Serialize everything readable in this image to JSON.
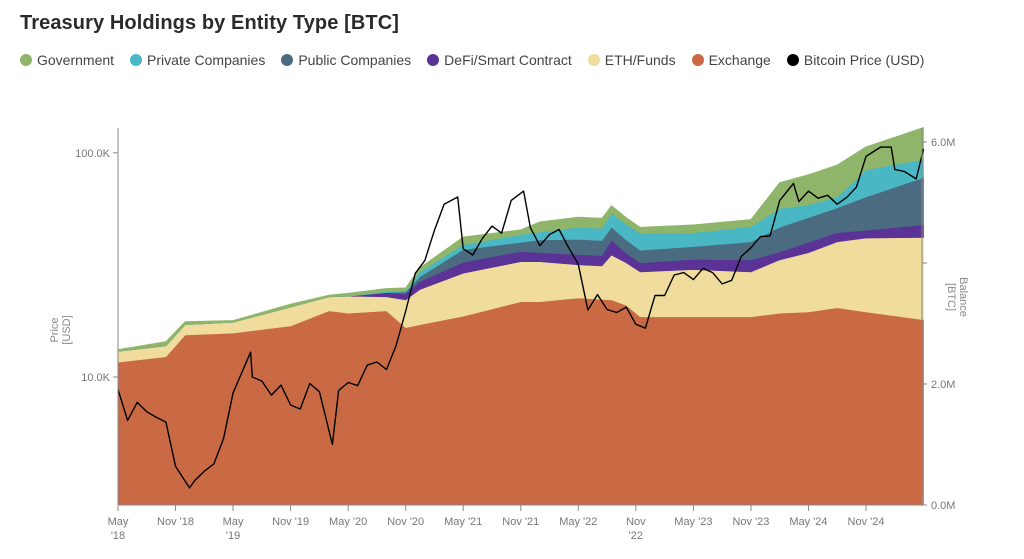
{
  "chart_data": {
    "type": "area",
    "title": "Treasury Holdings by Entity Type [BTC]",
    "legend_position": "top-left",
    "grid": false,
    "left_axis": {
      "label": [
        "Price",
        "[USD]"
      ],
      "scale": "log",
      "range": [
        2685,
        129000
      ],
      "ticks": [
        {
          "value": 10000,
          "label": "10.0K"
        },
        {
          "value": 100000,
          "label": "100.0K"
        }
      ]
    },
    "right_axis": {
      "label": [
        "Balance",
        "[BTC]"
      ],
      "scale": "linear",
      "range": [
        0,
        6.23
      ],
      "unit": "M BTC",
      "ticks": [
        {
          "value": 0,
          "label": "0.0M"
        },
        {
          "value": 2,
          "label": "2.0M"
        },
        {
          "value": 4,
          "label": ""
        },
        {
          "value": 6,
          "label": "6.0M"
        }
      ]
    },
    "x_ticks": [
      {
        "date": "2018-05",
        "label": [
          "May",
          "'18"
        ]
      },
      {
        "date": "2018-11",
        "label": [
          "Nov '18"
        ]
      },
      {
        "date": "2019-05",
        "label": [
          "May",
          "'19"
        ]
      },
      {
        "date": "2019-11",
        "label": [
          "Nov '19"
        ]
      },
      {
        "date": "2020-05",
        "label": [
          "May '20"
        ]
      },
      {
        "date": "2020-11",
        "label": [
          "Nov '20"
        ]
      },
      {
        "date": "2021-05",
        "label": [
          "May '21"
        ]
      },
      {
        "date": "2021-11",
        "label": [
          "Nov '21"
        ]
      },
      {
        "date": "2022-05",
        "label": [
          "May '22"
        ]
      },
      {
        "date": "2022-11",
        "label": [
          "Nov",
          "'22"
        ]
      },
      {
        "date": "2023-05",
        "label": [
          "May '23"
        ]
      },
      {
        "date": "2023-11",
        "label": [
          "Nov '23"
        ]
      },
      {
        "date": "2024-05",
        "label": [
          "May '24"
        ]
      },
      {
        "date": "2024-11",
        "label": [
          "Nov '24"
        ]
      }
    ],
    "x": [
      "2018-05",
      "2018-10",
      "2018-12",
      "2019-05",
      "2019-11",
      "2020-03",
      "2020-05",
      "2020-09",
      "2020-11",
      "2020-12-15",
      "2021-05",
      "2021-11",
      "2022-01",
      "2022-05",
      "2022-07-15",
      "2022-08-15",
      "2022-10-01",
      "2022-11-15",
      "2023-05",
      "2023-11",
      "2024-02",
      "2024-05",
      "2024-08",
      "2024-11",
      "2025-05"
    ],
    "series": [
      {
        "name": "Exchange",
        "color": "#c96a45",
        "values": [
          2.36,
          2.45,
          2.81,
          2.84,
          2.96,
          3.21,
          3.17,
          3.21,
          2.93,
          2.98,
          3.12,
          3.36,
          3.36,
          3.42,
          3.4,
          3.39,
          3.3,
          3.11,
          3.11,
          3.11,
          3.17,
          3.19,
          3.26,
          3.19,
          3.06
        ]
      },
      {
        "name": "ETH/Funds",
        "color": "#f0dc9d",
        "values": [
          0.18,
          0.18,
          0.17,
          0.18,
          0.31,
          0.23,
          0.28,
          0.23,
          0.46,
          0.58,
          0.71,
          0.66,
          0.66,
          0.55,
          0.55,
          0.74,
          0.7,
          0.74,
          0.78,
          0.74,
          0.88,
          0.98,
          1.09,
          1.22,
          1.36
        ]
      },
      {
        "name": "DeFi/Smart Contract",
        "color": "#5b3296",
        "values": [
          0,
          0,
          0,
          0,
          0,
          0,
          0,
          0.07,
          0.1,
          0.13,
          0.18,
          0.17,
          0.15,
          0.17,
          0.17,
          0.25,
          0.16,
          0.15,
          0.17,
          0.2,
          0.13,
          0.17,
          0.15,
          0.13,
          0.21
        ]
      },
      {
        "name": "Public Companies",
        "color": "#4a6b80",
        "values": [
          0,
          0,
          0,
          0,
          0,
          0,
          0,
          0,
          0.03,
          0.08,
          0.21,
          0.15,
          0.21,
          0.25,
          0.25,
          0.21,
          0.22,
          0.21,
          0.21,
          0.3,
          0.41,
          0.41,
          0.41,
          0.55,
          0.78
        ]
      },
      {
        "name": "Private Companies",
        "color": "#49b8c4",
        "values": [
          0,
          0,
          0,
          0,
          0,
          0,
          0,
          0.02,
          0.02,
          0.08,
          0.08,
          0.13,
          0.13,
          0.2,
          0.2,
          0.23,
          0.26,
          0.28,
          0.23,
          0.25,
          0.31,
          0.21,
          0.18,
          0.45,
          0.3
        ]
      },
      {
        "name": "Government",
        "color": "#8fb56a",
        "values": [
          0.03,
          0.07,
          0.05,
          0.03,
          0.05,
          0.03,
          0.05,
          0.05,
          0.05,
          0.07,
          0.13,
          0.08,
          0.17,
          0.17,
          0.17,
          0.13,
          0.11,
          0.1,
          0.13,
          0.12,
          0.43,
          0.5,
          0.53,
          0.38,
          0.53
        ]
      }
    ],
    "price": {
      "name": "Bitcoin Price (USD)",
      "color": "#000000",
      "x": [
        "2018-05",
        "2018-06",
        "2018-07",
        "2018-08",
        "2018-09",
        "2018-10",
        "2018-11",
        "2018-12-15",
        "2019-01",
        "2019-02",
        "2019-03",
        "2019-04",
        "2019-05",
        "2019-06-26",
        "2019-07",
        "2019-08",
        "2019-09",
        "2019-10",
        "2019-11",
        "2019-12",
        "2020-01",
        "2020-02",
        "2020-03-12",
        "2020-04",
        "2020-05",
        "2020-06",
        "2020-07",
        "2020-08",
        "2020-09",
        "2020-10",
        "2020-11",
        "2020-12",
        "2021-01",
        "2021-02",
        "2021-03",
        "2021-04-14",
        "2021-05",
        "2021-06",
        "2021-07",
        "2021-08",
        "2021-09",
        "2021-10",
        "2021-11-10",
        "2021-12",
        "2022-01",
        "2022-02",
        "2022-03",
        "2022-04",
        "2022-05",
        "2022-06",
        "2022-07",
        "2022-08",
        "2022-09",
        "2022-10",
        "2022-11",
        "2022-12",
        "2023-01",
        "2023-02",
        "2023-03",
        "2023-04",
        "2023-05",
        "2023-06",
        "2023-07",
        "2023-08",
        "2023-09",
        "2023-10",
        "2023-11",
        "2023-12",
        "2024-01",
        "2024-02",
        "2024-03-14",
        "2024-04",
        "2024-05",
        "2024-06",
        "2024-07",
        "2024-08",
        "2024-09",
        "2024-10",
        "2024-11",
        "2024-12-17",
        "2025-01-20",
        "2025-02",
        "2025-03",
        "2025-04-08",
        "2025-05"
      ],
      "values": [
        8800,
        6400,
        7700,
        7000,
        6600,
        6300,
        4000,
        3200,
        3450,
        3800,
        4100,
        5300,
        8500,
        12900,
        10000,
        9600,
        8300,
        9200,
        7500,
        7200,
        9350,
        8600,
        5000,
        8700,
        9450,
        9150,
        11300,
        11650,
        10800,
        13800,
        19700,
        29000,
        33100,
        45200,
        58900,
        63500,
        37300,
        35000,
        41500,
        47100,
        43800,
        61300,
        67500,
        46300,
        38500,
        43200,
        45500,
        37700,
        31800,
        19900,
        23300,
        20000,
        19400,
        20500,
        17200,
        16500,
        23100,
        23100,
        28500,
        29200,
        27200,
        30500,
        29200,
        26000,
        27000,
        34500,
        37700,
        42300,
        42600,
        61200,
        73000,
        60600,
        67500,
        62700,
        64600,
        59000,
        63300,
        70200,
        96400,
        106000,
        106000,
        84300,
        82500,
        76500,
        104000
      ]
    }
  }
}
